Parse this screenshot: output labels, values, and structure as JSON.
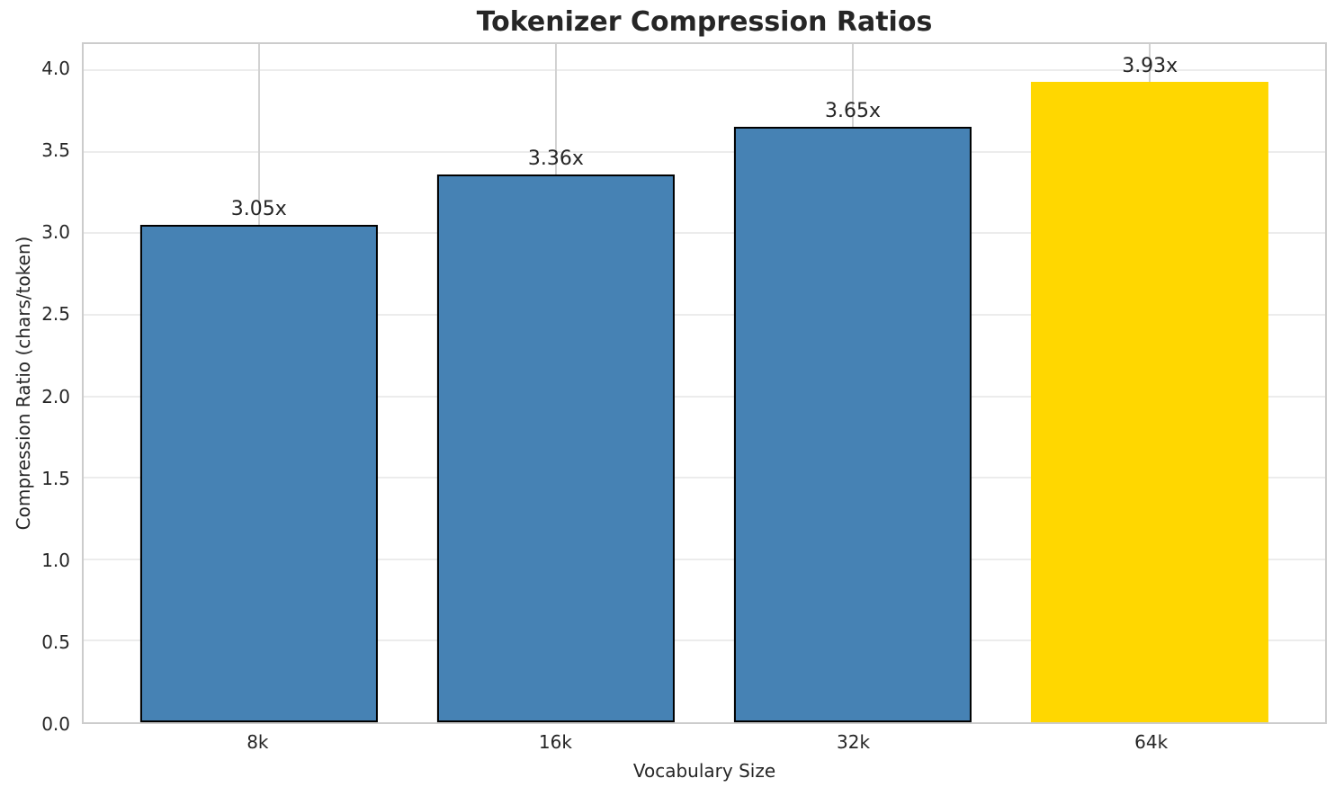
{
  "chart_data": {
    "type": "bar",
    "title": "Tokenizer Compression Ratios",
    "xlabel": "Vocabulary Size",
    "ylabel": "Compression Ratio (chars/token)",
    "categories": [
      "8k",
      "16k",
      "32k",
      "64k"
    ],
    "values": [
      3.05,
      3.36,
      3.65,
      3.93
    ],
    "bar_labels": [
      "3.05x",
      "3.36x",
      "3.65x",
      "3.93x"
    ],
    "bar_colors": [
      "#4682B4",
      "#4682B4",
      "#4682B4",
      "#FFD700"
    ],
    "bar_edge_colors": [
      "#000000",
      "#000000",
      "#000000",
      "none"
    ],
    "highlight_category": "64k",
    "ylim": [
      0,
      4.16
    ],
    "yticks": [
      {
        "value": 0.0,
        "label": "0.0"
      },
      {
        "value": 0.5,
        "label": "0.5"
      },
      {
        "value": 1.0,
        "label": "1.0"
      },
      {
        "value": 1.5,
        "label": "1.5"
      },
      {
        "value": 2.0,
        "label": "2.0"
      },
      {
        "value": 2.5,
        "label": "2.5"
      },
      {
        "value": 3.0,
        "label": "3.0"
      },
      {
        "value": 3.5,
        "label": "3.5"
      },
      {
        "value": 4.0,
        "label": "4.0"
      }
    ],
    "grid": true,
    "legend_position": "none",
    "bar_width_fraction": 0.8,
    "x_margin_units": 0.59,
    "colors": {
      "text": "#262626",
      "spine": "#cccccc",
      "grid_horizontal": "#ececec",
      "grid_vertical": "#d2d2d2",
      "bar_default": "#4682B4",
      "bar_highlight": "#FFD700",
      "bar_edge": "#000000"
    }
  }
}
